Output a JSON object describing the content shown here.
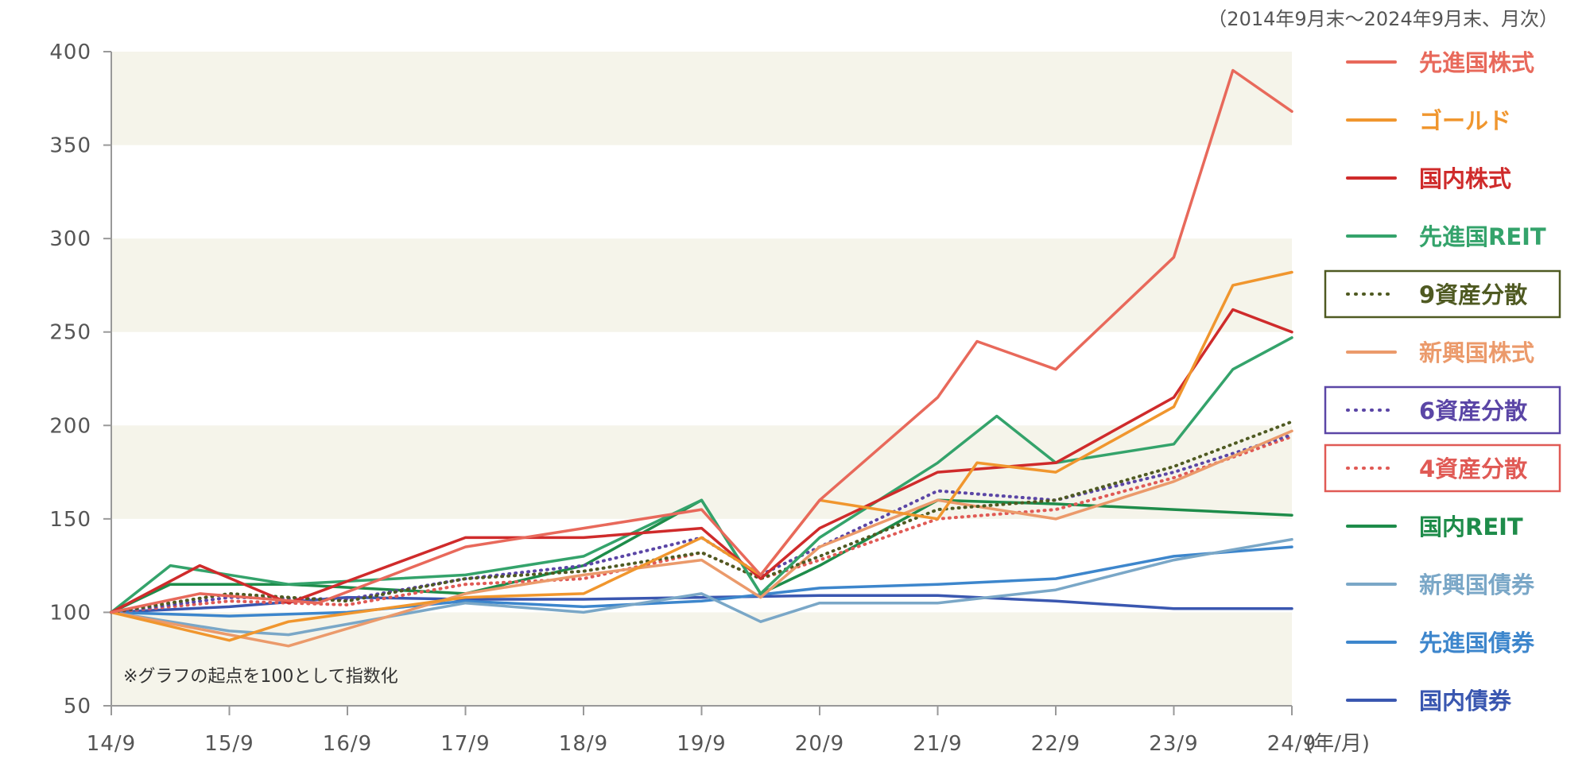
{
  "chart_data": {
    "type": "line",
    "period": "（2014年9月末～2024年9月末、月次）",
    "note": "※グラフの起点を100として指数化",
    "x_unit": "(年/月)",
    "x_ticks": [
      "14/9",
      "15/9",
      "16/9",
      "17/9",
      "18/9",
      "19/9",
      "20/9",
      "21/9",
      "22/9",
      "23/9",
      "24/9"
    ],
    "y_ticks": [
      50,
      100,
      150,
      200,
      250,
      300,
      350,
      400
    ],
    "ylim": [
      50,
      400
    ],
    "grid": "alternating shaded horizontal bands",
    "band_color": "#f5f4ea",
    "legend_position": "right",
    "series": [
      {
        "name": "先進国株式",
        "color": "#e8695b",
        "dash": "solid",
        "boxed": false,
        "x": [
          "14/9",
          "15/6",
          "16/6",
          "17/9",
          "18/9",
          "19/9",
          "20/3",
          "20/9",
          "21/9",
          "22/1",
          "22/9",
          "23/9",
          "24/3",
          "24/9"
        ],
        "values": [
          100,
          110,
          105,
          135,
          145,
          155,
          120,
          160,
          215,
          245,
          230,
          290,
          390,
          368
        ]
      },
      {
        "name": "ゴールド",
        "color": "#f0962e",
        "dash": "solid",
        "boxed": false,
        "x": [
          "14/9",
          "15/9",
          "16/3",
          "17/9",
          "18/9",
          "19/9",
          "20/3",
          "20/9",
          "21/9",
          "22/1",
          "22/9",
          "23/9",
          "24/3",
          "24/9"
        ],
        "values": [
          100,
          85,
          95,
          108,
          110,
          140,
          120,
          160,
          150,
          180,
          175,
          210,
          275,
          282
        ]
      },
      {
        "name": "国内株式",
        "color": "#cf2b2b",
        "dash": "solid",
        "boxed": false,
        "x": [
          "14/9",
          "15/6",
          "16/3",
          "17/9",
          "18/9",
          "19/9",
          "20/3",
          "20/9",
          "21/9",
          "22/9",
          "23/9",
          "24/3",
          "24/9"
        ],
        "values": [
          100,
          125,
          105,
          140,
          140,
          145,
          118,
          145,
          175,
          180,
          215,
          262,
          250
        ]
      },
      {
        "name": "先進国REIT",
        "color": "#34a36b",
        "dash": "solid",
        "boxed": false,
        "x": [
          "14/9",
          "15/3",
          "16/3",
          "17/9",
          "18/9",
          "19/9",
          "20/3",
          "20/9",
          "21/9",
          "22/3",
          "22/9",
          "23/9",
          "24/3",
          "24/9"
        ],
        "values": [
          100,
          125,
          115,
          120,
          130,
          160,
          110,
          140,
          180,
          205,
          180,
          190,
          230,
          247
        ]
      },
      {
        "name": "9資産分散",
        "color": "#4f5a22",
        "dash": "dotted",
        "boxed": true,
        "x": [
          "14/9",
          "15/9",
          "16/9",
          "17/9",
          "18/9",
          "19/9",
          "20/3",
          "20/9",
          "21/9",
          "22/9",
          "23/9",
          "24/9"
        ],
        "values": [
          100,
          110,
          106,
          118,
          122,
          132,
          118,
          130,
          155,
          160,
          178,
          202
        ]
      },
      {
        "name": "新興国株式",
        "color": "#eb9a6b",
        "dash": "solid",
        "boxed": false,
        "x": [
          "14/9",
          "15/9",
          "16/3",
          "17/9",
          "18/9",
          "19/9",
          "20/3",
          "20/9",
          "21/9",
          "22/9",
          "23/9",
          "24/9"
        ],
        "values": [
          100,
          88,
          82,
          110,
          120,
          128,
          108,
          135,
          160,
          150,
          170,
          197
        ]
      },
      {
        "name": "6資産分散",
        "color": "#5b46a6",
        "dash": "dotted",
        "boxed": true,
        "x": [
          "14/9",
          "15/9",
          "16/9",
          "17/9",
          "18/9",
          "19/9",
          "20/3",
          "20/9",
          "21/9",
          "22/9",
          "23/9",
          "24/9"
        ],
        "values": [
          100,
          108,
          107,
          118,
          125,
          140,
          120,
          135,
          165,
          160,
          175,
          195
        ]
      },
      {
        "name": "4資産分散",
        "color": "#e05a55",
        "dash": "dotted",
        "boxed": true,
        "x": [
          "14/9",
          "15/9",
          "16/9",
          "17/9",
          "18/9",
          "19/9",
          "20/3",
          "20/9",
          "21/9",
          "22/9",
          "23/9",
          "24/9"
        ],
        "values": [
          100,
          106,
          104,
          115,
          118,
          132,
          118,
          128,
          150,
          155,
          172,
          194
        ]
      },
      {
        "name": "国内REIT",
        "color": "#1e8c4a",
        "dash": "solid",
        "boxed": false,
        "x": [
          "14/9",
          "15/3",
          "16/3",
          "17/9",
          "18/9",
          "19/9",
          "20/3",
          "20/9",
          "21/9",
          "22/9",
          "23/9",
          "24/9"
        ],
        "values": [
          100,
          115,
          115,
          110,
          125,
          160,
          110,
          125,
          160,
          158,
          155,
          152
        ]
      },
      {
        "name": "新興国債券",
        "color": "#7aa7c7",
        "dash": "solid",
        "boxed": false,
        "x": [
          "14/9",
          "15/9",
          "16/3",
          "17/9",
          "18/9",
          "19/9",
          "20/3",
          "20/9",
          "21/9",
          "22/9",
          "23/9",
          "24/9"
        ],
        "values": [
          100,
          90,
          88,
          105,
          100,
          110,
          95,
          105,
          105,
          112,
          128,
          139
        ]
      },
      {
        "name": "先進国債券",
        "color": "#3d86cc",
        "dash": "solid",
        "boxed": false,
        "x": [
          "14/9",
          "15/9",
          "16/9",
          "17/9",
          "18/9",
          "19/9",
          "20/9",
          "21/9",
          "22/9",
          "23/9",
          "24/9"
        ],
        "values": [
          100,
          98,
          100,
          106,
          103,
          106,
          113,
          115,
          118,
          130,
          135
        ]
      },
      {
        "name": "国内債券",
        "color": "#3a57b0",
        "dash": "solid",
        "boxed": false,
        "x": [
          "14/9",
          "15/9",
          "16/9",
          "17/9",
          "18/9",
          "19/9",
          "20/9",
          "21/9",
          "22/9",
          "23/9",
          "24/9"
        ],
        "values": [
          100,
          103,
          108,
          107,
          107,
          108,
          109,
          109,
          106,
          102,
          102
        ]
      }
    ]
  }
}
